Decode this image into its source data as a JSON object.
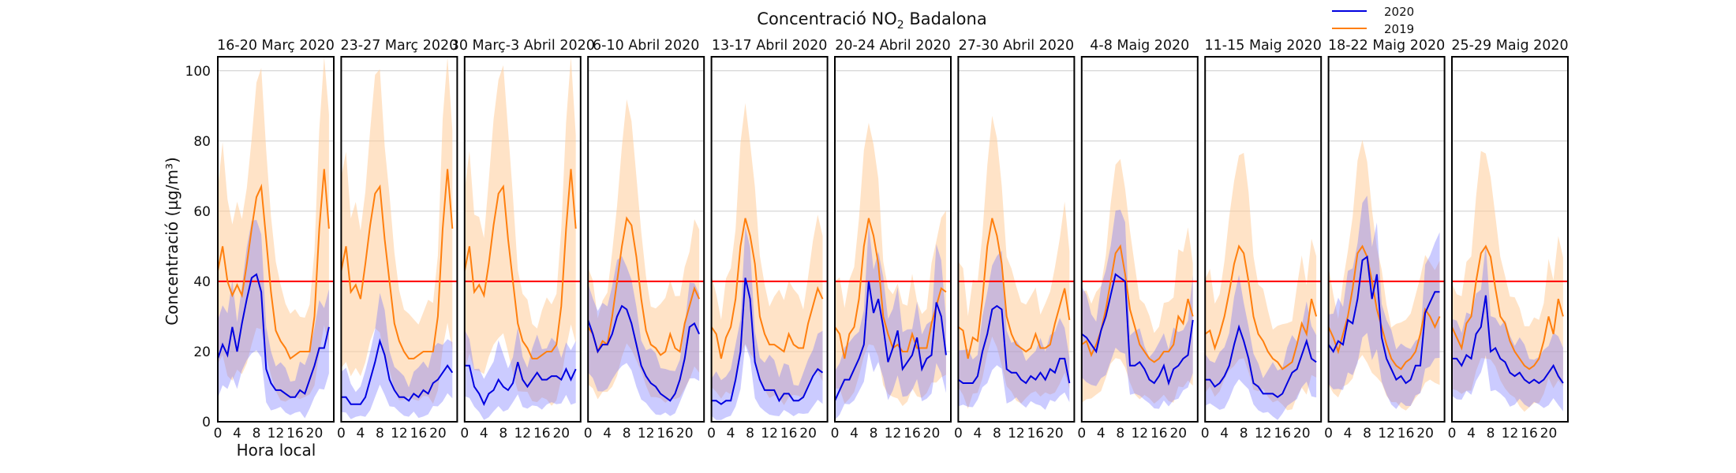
{
  "chart_data": {
    "type": "line",
    "title_prefix": "Concentració NO",
    "title_subscript": "2",
    "title_suffix": " Badalona",
    "ylabel": "Concentració (µg/m³)",
    "xlabel": "Hora local",
    "ylim": [
      0,
      104
    ],
    "yticks": [
      0,
      20,
      40,
      60,
      80,
      100
    ],
    "xlim": [
      0,
      24
    ],
    "xticks": [
      0,
      4,
      8,
      12,
      16,
      20
    ],
    "threshold": 40,
    "grid": true,
    "legend_position": "top-right",
    "colors": {
      "2020": "#0000e0",
      "2019": "#ff7f0e",
      "threshold": "#ff0000",
      "band2020": "#6a6aff",
      "band2019": "#ffcc99"
    },
    "series": [
      {
        "name": "2020"
      },
      {
        "name": "2019"
      }
    ],
    "panels": [
      {
        "title": "16-20 Març 2020",
        "v2020": [
          18,
          22,
          19,
          27,
          20,
          28,
          35,
          41,
          42,
          37,
          15,
          11,
          9,
          9,
          8,
          7,
          7,
          9,
          8,
          12,
          16,
          21,
          21,
          27
        ],
        "v2019": [
          43,
          50,
          40,
          36,
          39,
          36,
          45,
          55,
          64,
          67,
          52,
          37,
          26,
          23,
          21,
          18,
          19,
          20,
          20,
          20,
          30,
          55,
          72,
          55
        ]
      },
      {
        "title": "23-27 Març 2020",
        "v2020": [
          7,
          7,
          5,
          5,
          5,
          7,
          12,
          17,
          23,
          19,
          12,
          9,
          7,
          7,
          6,
          8,
          7,
          9,
          8,
          11,
          12,
          14,
          16,
          14
        ],
        "v2019": [
          43,
          50,
          37,
          39,
          35,
          45,
          56,
          65,
          67,
          52,
          40,
          28,
          23,
          20,
          18,
          18,
          19,
          20,
          20,
          20,
          30,
          55,
          72,
          55
        ]
      },
      {
        "title": "30 Març-3 Abril 2020",
        "v2020": [
          16,
          16,
          10,
          8,
          5,
          8,
          9,
          12,
          10,
          9,
          11,
          17,
          12,
          10,
          12,
          14,
          12,
          12,
          13,
          13,
          12,
          15,
          12,
          15
        ],
        "v2019": [
          43,
          50,
          37,
          39,
          36,
          45,
          56,
          65,
          67,
          52,
          40,
          28,
          23,
          21,
          18,
          18,
          19,
          20,
          20,
          22,
          33,
          55,
          72,
          55
        ]
      },
      {
        "title": "6-10 Abril 2020",
        "v2020": [
          29,
          25,
          20,
          22,
          22,
          25,
          30,
          33,
          32,
          28,
          22,
          16,
          13,
          11,
          10,
          8,
          7,
          6,
          8,
          12,
          18,
          27,
          28,
          25
        ],
        "v2019": [
          27,
          25,
          20,
          23,
          22,
          30,
          40,
          50,
          58,
          56,
          47,
          35,
          26,
          22,
          21,
          19,
          20,
          25,
          21,
          20,
          28,
          33,
          38,
          35
        ]
      },
      {
        "title": "13-17 Abril 2020",
        "v2020": [
          6,
          6,
          5,
          6,
          6,
          12,
          20,
          41,
          35,
          17,
          12,
          9,
          9,
          9,
          6,
          8,
          8,
          6,
          6,
          7,
          10,
          13,
          15,
          14
        ],
        "v2019": [
          27,
          25,
          18,
          24,
          27,
          35,
          50,
          58,
          53,
          45,
          30,
          25,
          22,
          22,
          21,
          20,
          25,
          22,
          21,
          21,
          28,
          33,
          38,
          35
        ]
      },
      {
        "title": "20-24 Abril 2020",
        "v2020": [
          6,
          9,
          12,
          12,
          15,
          18,
          22,
          40,
          31,
          35,
          27,
          17,
          21,
          26,
          15,
          17,
          19,
          24,
          15,
          18,
          19,
          34,
          30,
          19
        ],
        "v2019": [
          27,
          25,
          18,
          25,
          27,
          35,
          50,
          58,
          53,
          45,
          30,
          25,
          21,
          22,
          20,
          20,
          25,
          21,
          21,
          21,
          28,
          33,
          38,
          37
        ]
      },
      {
        "title": "27-30 Abril 2020",
        "v2020": [
          12,
          11,
          11,
          11,
          13,
          20,
          25,
          32,
          33,
          32,
          15,
          14,
          14,
          12,
          11,
          13,
          12,
          14,
          12,
          15,
          14,
          18,
          18,
          11
        ],
        "v2019": [
          27,
          26,
          18,
          24,
          23,
          35,
          50,
          58,
          53,
          45,
          30,
          25,
          22,
          21,
          20,
          21,
          25,
          21,
          21,
          22,
          28,
          33,
          38,
          29
        ]
      },
      {
        "title": "4-8 Maig 2020",
        "v2020": [
          25,
          24,
          22,
          20,
          26,
          30,
          36,
          42,
          41,
          40,
          16,
          16,
          17,
          15,
          12,
          11,
          13,
          16,
          11,
          15,
          16,
          18,
          19,
          29
        ],
        "v2019": [
          22,
          23,
          19,
          22,
          26,
          32,
          40,
          48,
          50,
          42,
          32,
          27,
          22,
          20,
          18,
          17,
          18,
          20,
          20,
          22,
          30,
          28,
          35,
          30
        ]
      },
      {
        "title": "11-15 Maig 2020",
        "v2020": [
          12,
          12,
          10,
          11,
          13,
          16,
          22,
          27,
          23,
          18,
          11,
          10,
          8,
          8,
          8,
          7,
          8,
          11,
          14,
          15,
          19,
          23,
          18,
          17
        ],
        "v2019": [
          25,
          26,
          21,
          25,
          30,
          37,
          45,
          50,
          48,
          40,
          30,
          25,
          23,
          20,
          18,
          17,
          15,
          16,
          17,
          22,
          28,
          25,
          35,
          30
        ]
      },
      {
        "title": "18-22 Maig 2020",
        "v2020": [
          22,
          20,
          23,
          22,
          29,
          28,
          35,
          46,
          47,
          35,
          42,
          24,
          18,
          15,
          12,
          13,
          11,
          12,
          16,
          16,
          31,
          34,
          37,
          37
        ],
        "v2019": [
          27,
          24,
          20,
          25,
          30,
          38,
          48,
          50,
          47,
          40,
          32,
          27,
          22,
          18,
          16,
          15,
          17,
          18,
          20,
          25,
          32,
          30,
          27,
          30
        ]
      },
      {
        "title": "25-29 Maig 2020",
        "v2020": [
          18,
          18,
          16,
          19,
          18,
          25,
          27,
          36,
          20,
          21,
          18,
          17,
          14,
          13,
          14,
          12,
          11,
          12,
          11,
          12,
          14,
          16,
          13,
          11
        ],
        "v2019": [
          27,
          24,
          21,
          28,
          30,
          40,
          48,
          50,
          47,
          38,
          30,
          28,
          23,
          20,
          18,
          16,
          15,
          16,
          18,
          23,
          30,
          25,
          35,
          30
        ]
      }
    ]
  }
}
